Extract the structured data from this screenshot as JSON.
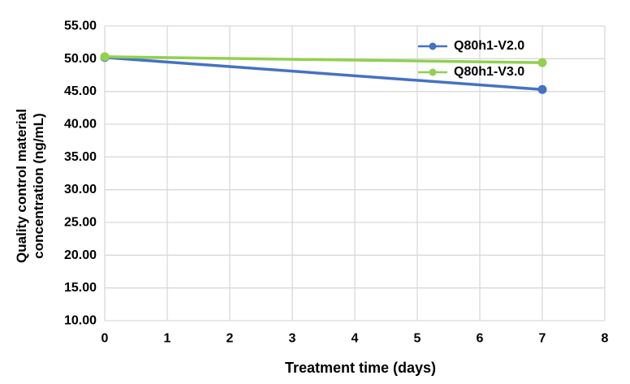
{
  "chart_data": {
    "type": "line",
    "title": "",
    "xlabel": "Treatment time (days)",
    "ylabel": "Quality control material concentration (ng/mL)",
    "ylabel_lines": [
      "Quality control material",
      "concentration (ng/mL)"
    ],
    "x": [
      0,
      7
    ],
    "series": [
      {
        "name": "Q80h1-V2.0",
        "color": "#4472C4",
        "values": [
          50.2,
          45.3
        ]
      },
      {
        "name": "Q80h1-V3.0",
        "color": "#92D050",
        "values": [
          50.3,
          49.4
        ]
      }
    ],
    "xlim": [
      0,
      8
    ],
    "ylim": [
      10,
      55
    ],
    "x_ticks": [
      0,
      1,
      2,
      3,
      4,
      5,
      6,
      7,
      8
    ],
    "y_ticks": [
      {
        "value": 55,
        "label": "55.00"
      },
      {
        "value": 50,
        "label": "50.00"
      },
      {
        "value": 45,
        "label": "45.00"
      },
      {
        "value": 40,
        "label": "40.00"
      },
      {
        "value": 35,
        "label": "35.00"
      },
      {
        "value": 30,
        "label": "30.00"
      },
      {
        "value": 25,
        "label": "25.00"
      },
      {
        "value": 20,
        "label": "20.00"
      },
      {
        "value": 15,
        "label": "15.00"
      },
      {
        "value": 10,
        "label": "10.00"
      }
    ],
    "grid": true,
    "gridline_color": "#d9d9d9",
    "tick_label_color": "#000000",
    "legend_position": "inside-top-right",
    "legend": [
      "Q80h1-V2.0",
      "Q80h1-V3.0"
    ]
  }
}
